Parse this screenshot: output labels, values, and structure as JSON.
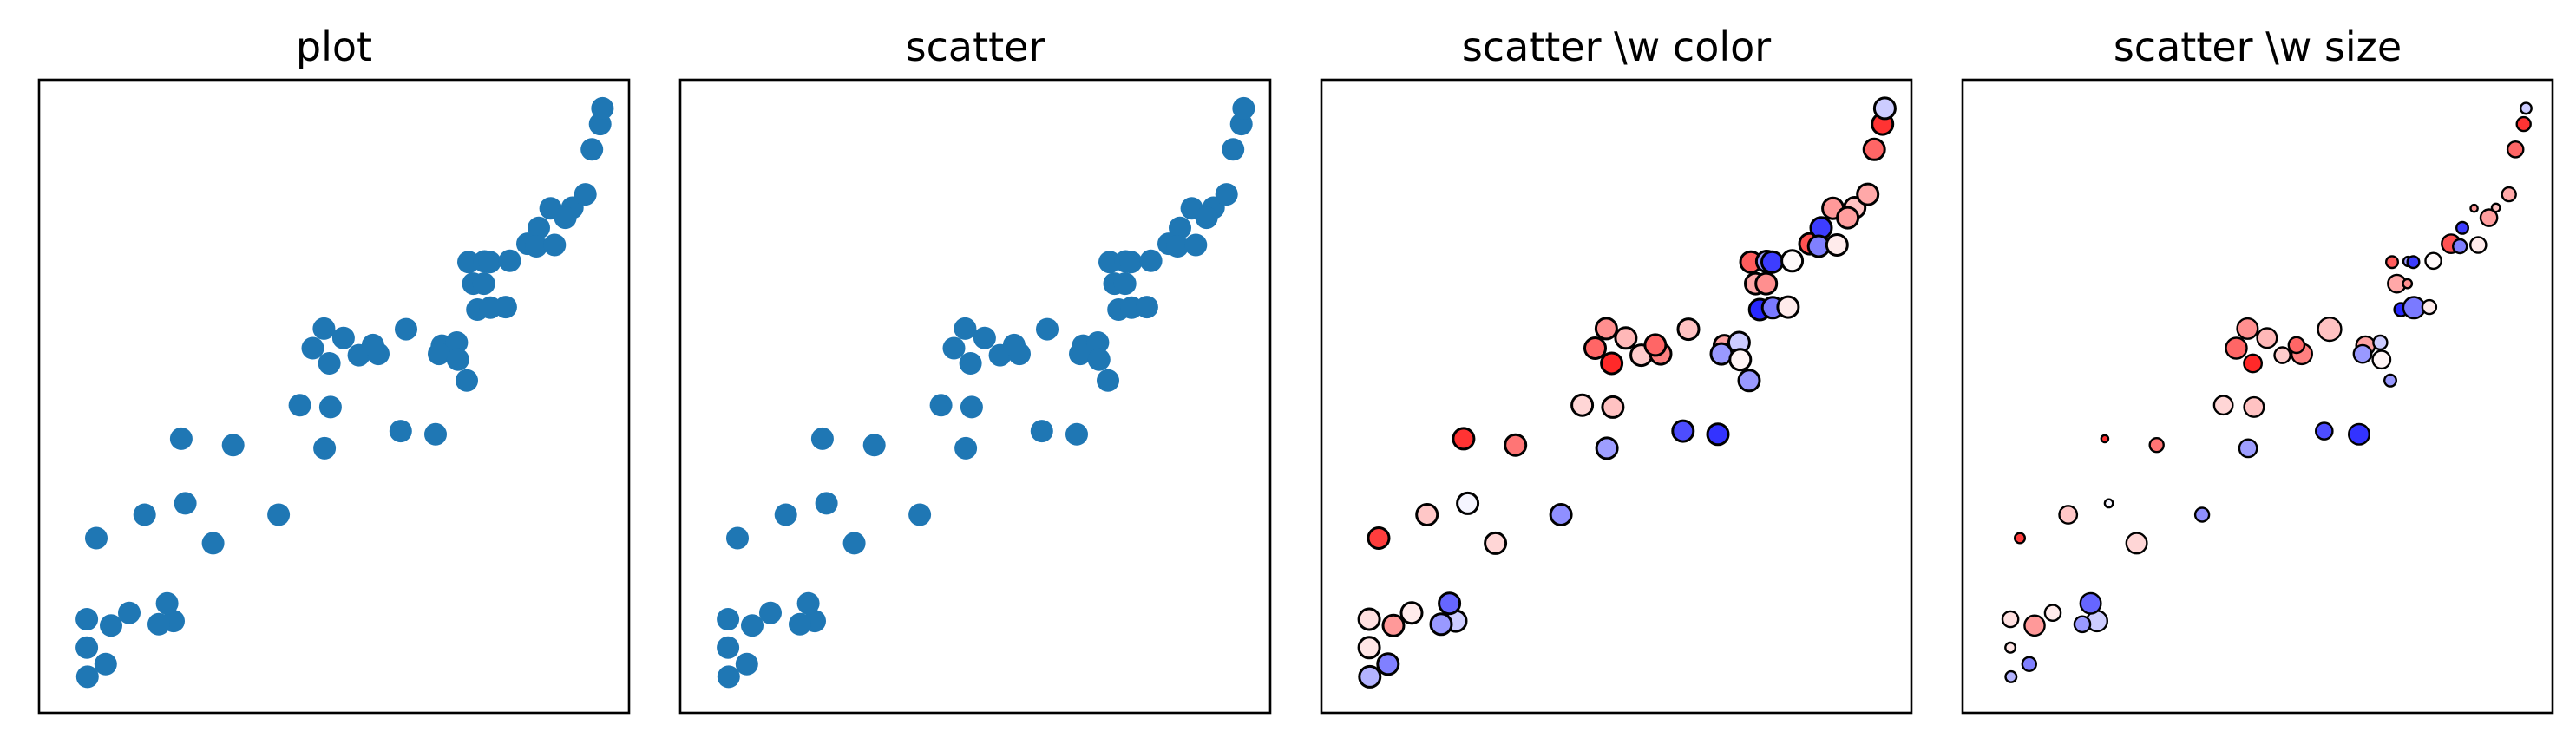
{
  "chart_data": [
    {
      "type": "scatter",
      "title": "plot",
      "series_color": "#1f77b4"
    },
    {
      "type": "scatter",
      "title": "scatter",
      "series_color": "#1f77b4"
    },
    {
      "type": "scatter",
      "title": "scatter \\w color",
      "colormap": "bwr",
      "marker_edge": "#000000"
    },
    {
      "type": "scatter",
      "title": "scatter \\w size",
      "colormap": "bwr",
      "marker_edge": "#000000"
    }
  ],
  "points": {
    "x": [
      0.082,
      0.113,
      0.081,
      0.228,
      0.081,
      0.122,
      0.203,
      0.153,
      0.217,
      0.295,
      0.097,
      0.179,
      0.248,
      0.241,
      0.406,
      0.329,
      0.442,
      0.492,
      0.484,
      0.494,
      0.464,
      0.483,
      0.516,
      0.542,
      0.575,
      0.566,
      0.622,
      0.613,
      0.672,
      0.683,
      0.708,
      0.678,
      0.71,
      0.725,
      0.743,
      0.736,
      0.728,
      0.754,
      0.755,
      0.764,
      0.765,
      0.791,
      0.798,
      0.828,
      0.847,
      0.843,
      0.867,
      0.904,
      0.892,
      0.874,
      0.926,
      0.937,
      0.951,
      0.955
    ],
    "y": [
      0.057,
      0.077,
      0.103,
      0.145,
      0.148,
      0.138,
      0.14,
      0.158,
      0.173,
      0.268,
      0.276,
      0.313,
      0.331,
      0.433,
      0.313,
      0.423,
      0.486,
      0.552,
      0.418,
      0.483,
      0.576,
      0.607,
      0.592,
      0.565,
      0.567,
      0.581,
      0.606,
      0.445,
      0.44,
      0.58,
      0.585,
      0.567,
      0.558,
      0.525,
      0.637,
      0.678,
      0.712,
      0.678,
      0.713,
      0.712,
      0.64,
      0.641,
      0.714,
      0.741,
      0.766,
      0.737,
      0.797,
      0.798,
      0.782,
      0.739,
      0.819,
      0.89,
      0.93,
      0.955
    ],
    "color_value": [
      0.35,
      0.25,
      0.55,
      0.4,
      0.56,
      0.7,
      0.3,
      0.54,
      0.2,
      0.58,
      0.88,
      0.61,
      0.48,
      0.9,
      0.28,
      0.77,
      0.58,
      0.92,
      0.31,
      0.62,
      0.8,
      0.72,
      0.64,
      0.6,
      0.75,
      0.8,
      0.62,
      0.15,
      0.1,
      0.68,
      0.4,
      0.3,
      0.52,
      0.3,
      0.08,
      0.67,
      0.82,
      0.72,
      0.3,
      0.12,
      0.24,
      0.54,
      0.51,
      0.84,
      0.12,
      0.25,
      0.7,
      0.62,
      0.69,
      0.54,
      0.67,
      0.8,
      0.9,
      0.4
    ],
    "size_value": [
      0.3,
      0.45,
      0.25,
      0.8,
      0.55,
      0.78,
      0.55,
      0.55,
      0.8,
      0.8,
      0.25,
      0.65,
      0.15,
      0.1,
      0.45,
      0.45,
      0.7,
      0.65,
      0.65,
      0.75,
      0.82,
      0.8,
      0.75,
      0.55,
      0.8,
      0.55,
      0.95,
      0.6,
      0.8,
      0.7,
      0.45,
      0.65,
      0.65,
      0.35,
      0.42,
      0.65,
      0.35,
      0.2,
      0.22,
      0.35,
      0.85,
      0.45,
      0.55,
      0.7,
      0.35,
      0.45,
      0.1,
      0.15,
      0.6,
      0.55,
      0.45,
      0.55,
      0.45,
      0.3
    ]
  }
}
